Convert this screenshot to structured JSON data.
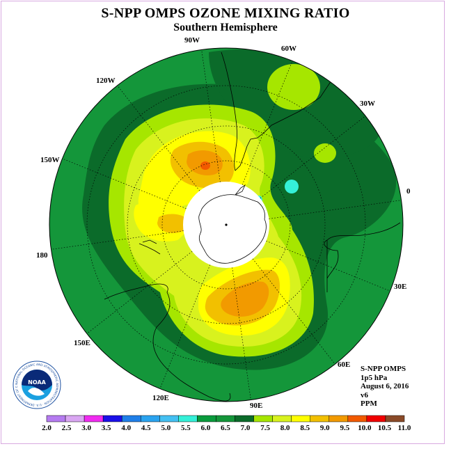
{
  "header": {
    "title": "S-NPP OMPS OZONE MIXING RATIO",
    "subtitle": "Southern Hemisphere"
  },
  "longitude_labels": [
    "90W",
    "60W",
    "30W",
    "0",
    "30E",
    "60E",
    "90E",
    "120E",
    "150E",
    "180",
    "150W",
    "120W"
  ],
  "info": {
    "line1": "S-NPP OMPS",
    "line2": "1p5 hPa",
    "line3": "August 6, 2016",
    "line4": "v6",
    "line5": "PPM"
  },
  "logo": {
    "text": "NOAA",
    "ring_text": "NATIONAL OCEANIC AND ATMOSPHERIC ADMINISTRATION · U.S. DEPARTMENT OF COMMERCE"
  },
  "colorbar": {
    "labels": [
      "2.0",
      "2.5",
      "3.0",
      "3.5",
      "4.0",
      "4.5",
      "5.0",
      "5.5",
      "6.0",
      "6.5",
      "7.0",
      "7.5",
      "8.0",
      "8.5",
      "9.0",
      "9.5",
      "10.0",
      "10.5",
      "11.0"
    ],
    "colors": [
      "#b57bf0",
      "#d9a6f2",
      "#f02bf0",
      "#1a10e8",
      "#1f7fe8",
      "#2aa3ef",
      "#44c0f2",
      "#35f0d8",
      "#0a9b3c",
      "#14963a",
      "#0b6b2a",
      "#a6e600",
      "#d8f21e",
      "#ffff00",
      "#f2c000",
      "#f29a00",
      "#f25a00",
      "#f00000",
      "#8a4a28"
    ]
  },
  "chart_data": {
    "type": "map",
    "projection": "south polar stereographic",
    "variable": "ozone mixing ratio",
    "units": "PPM",
    "pressure_level": "1p5 hPa",
    "date": "August 6, 2016",
    "colorbar_range": [
      2.0,
      11.0
    ],
    "colorbar_step": 0.5,
    "features": [
      {
        "region": "90E–120E sector, mid-latitudes",
        "max_ppm": 9.5
      },
      {
        "region": "60W–90W sector, near South America",
        "max_ppm": 10.0
      },
      {
        "region": "150W–180 sector, near pole",
        "max_ppm": 9.5
      },
      {
        "region": "outer ring / lower latitudes",
        "value_ppm": 6.5
      },
      {
        "region": "collar around polar night",
        "value_ppm": 7.0
      }
    ]
  }
}
